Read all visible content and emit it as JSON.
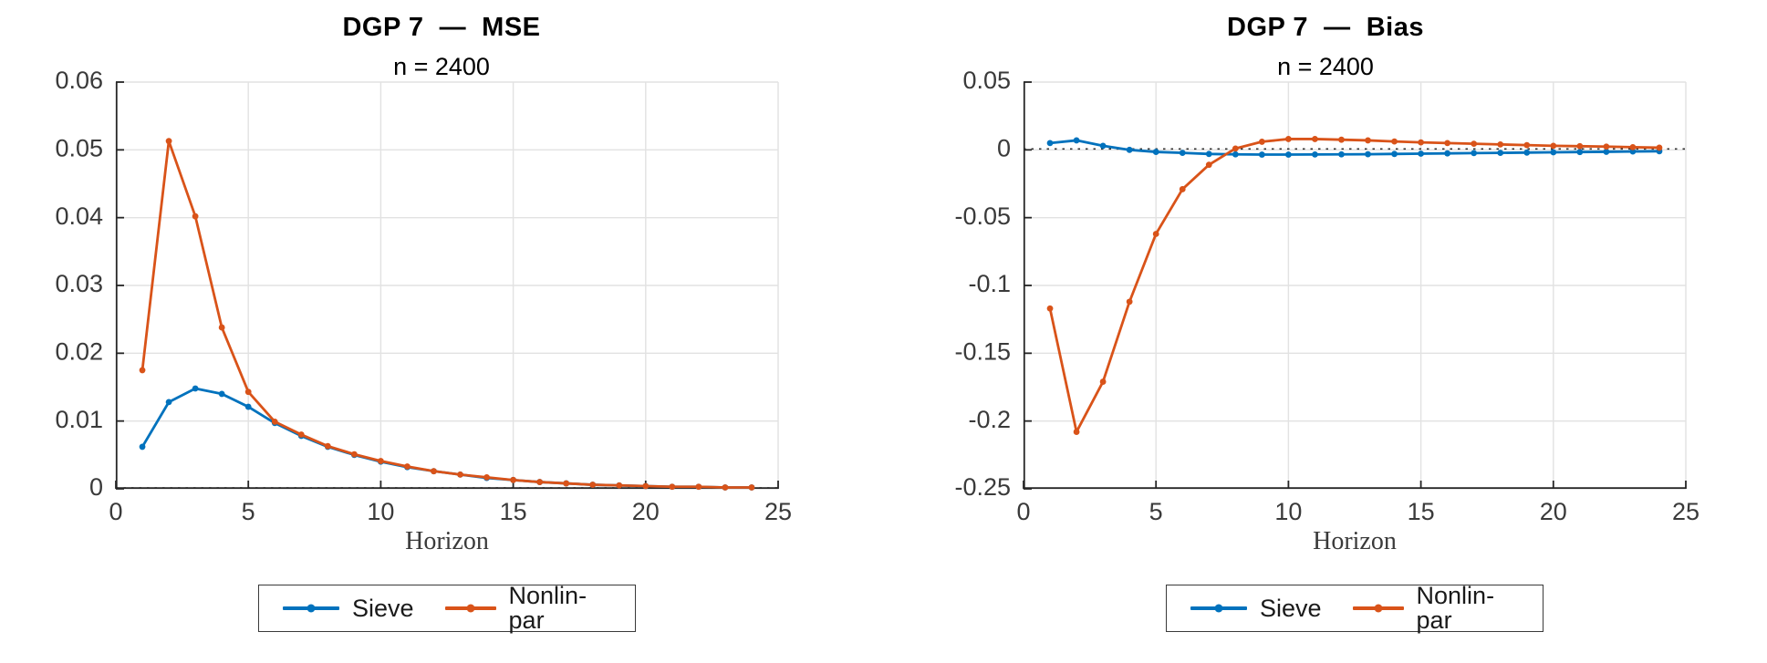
{
  "page": {
    "background": "#ffffff"
  },
  "styles": {
    "series_blue": "#0072BD",
    "series_orange": "#D95319",
    "grid_color": "#e2e2e2",
    "axis_color": "#262626",
    "tick_label_color": "#3a3a3a",
    "zero_line_color": "#333333"
  },
  "chart_data": [
    {
      "type": "line",
      "title": "DGP 7  —  MSE",
      "subtitle": "n = 2400",
      "xlabel": "Horizon",
      "grid": true,
      "zero_line_dotted": true,
      "legend_position": "below",
      "xlim": [
        0,
        25
      ],
      "xticks": [
        0,
        5,
        10,
        15,
        20,
        25
      ],
      "xtick_labels": [
        "0",
        "5",
        "10",
        "15",
        "20",
        "25"
      ],
      "ylim": [
        0,
        0.06
      ],
      "yticks": [
        0,
        0.01,
        0.02,
        0.03,
        0.04,
        0.05,
        0.06
      ],
      "ytick_labels": [
        "0",
        "0.01",
        "0.02",
        "0.03",
        "0.04",
        "0.05",
        "0.06"
      ],
      "x": [
        1,
        2,
        3,
        4,
        5,
        6,
        7,
        8,
        9,
        10,
        11,
        12,
        13,
        14,
        15,
        16,
        17,
        18,
        19,
        20,
        21,
        22,
        23,
        24
      ],
      "series": [
        {
          "name": "Sieve",
          "color": "#0072BD",
          "values": [
            0.0062,
            0.0128,
            0.0148,
            0.014,
            0.0121,
            0.0097,
            0.0078,
            0.0062,
            0.005,
            0.004,
            0.0032,
            0.0026,
            0.0021,
            0.0016,
            0.0013,
            0.001,
            0.0008,
            0.0006,
            0.0005,
            0.0004,
            0.0003,
            0.0003,
            0.0002,
            0.0002
          ]
        },
        {
          "name": "Nonlin-par",
          "color": "#D95319",
          "values": [
            0.0175,
            0.0513,
            0.0402,
            0.0238,
            0.0143,
            0.0099,
            0.008,
            0.0063,
            0.0051,
            0.0041,
            0.0033,
            0.0026,
            0.0021,
            0.0017,
            0.0013,
            0.001,
            0.0008,
            0.0006,
            0.0005,
            0.0004,
            0.0003,
            0.0003,
            0.0002,
            0.0002
          ]
        }
      ]
    },
    {
      "type": "line",
      "title": "DGP 7  —  Bias",
      "subtitle": "n = 2400",
      "xlabel": "Horizon",
      "grid": true,
      "zero_line_dotted": true,
      "legend_position": "below",
      "xlim": [
        0,
        25
      ],
      "xticks": [
        0,
        5,
        10,
        15,
        20,
        25
      ],
      "xtick_labels": [
        "0",
        "5",
        "10",
        "15",
        "20",
        "25"
      ],
      "ylim": [
        -0.25,
        0.05
      ],
      "yticks": [
        -0.25,
        -0.2,
        -0.15,
        -0.1,
        -0.05,
        0,
        0.05
      ],
      "ytick_labels": [
        "-0.25",
        "-0.2",
        "-0.15",
        "-0.1",
        "-0.05",
        "0",
        "0.05"
      ],
      "x": [
        1,
        2,
        3,
        4,
        5,
        6,
        7,
        8,
        9,
        10,
        11,
        12,
        13,
        14,
        15,
        16,
        17,
        18,
        19,
        20,
        21,
        22,
        23,
        24
      ],
      "series": [
        {
          "name": "Sieve",
          "color": "#0072BD",
          "values": [
            0.005,
            0.007,
            0.003,
            0.0,
            -0.0015,
            -0.0022,
            -0.003,
            -0.0033,
            -0.0035,
            -0.0035,
            -0.0034,
            -0.0033,
            -0.0032,
            -0.003,
            -0.0028,
            -0.0026,
            -0.0024,
            -0.0022,
            -0.002,
            -0.0018,
            -0.0016,
            -0.0014,
            -0.0012,
            -0.001
          ]
        },
        {
          "name": "Nonlin-par",
          "color": "#D95319",
          "values": [
            -0.117,
            -0.208,
            -0.171,
            -0.112,
            -0.062,
            -0.029,
            -0.011,
            0.001,
            0.006,
            0.008,
            0.008,
            0.0075,
            0.007,
            0.0062,
            0.0055,
            0.005,
            0.0045,
            0.004,
            0.0035,
            0.003,
            0.0027,
            0.0024,
            0.002,
            0.0016
          ]
        }
      ]
    }
  ]
}
